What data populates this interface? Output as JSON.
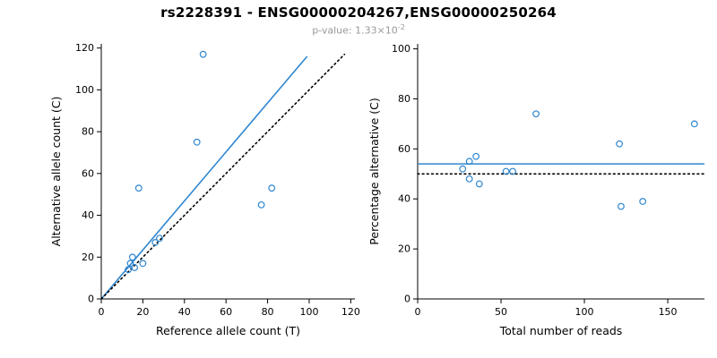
{
  "header": {
    "title": "rs2228391 - ENSG00000204267,ENSG00000250264",
    "pvalue_text": "p-value: 1.33×10",
    "pvalue_exponent": "-2"
  },
  "colors": {
    "accent_blue": "#2E86D0",
    "line_black": "#000000",
    "subtitle_gray": "#999999"
  },
  "chart_data": [
    {
      "type": "scatter",
      "title": "",
      "xlabel": "Reference allele count (T)",
      "ylabel": "Alternative allele count (C)",
      "xlim": [
        0,
        122
      ],
      "ylim": [
        0,
        122
      ],
      "xticks": [
        0,
        20,
        40,
        60,
        80,
        100,
        120
      ],
      "yticks": [
        0,
        20,
        40,
        60,
        80,
        100,
        120
      ],
      "grid": false,
      "legend": "none",
      "points": [
        [
          13,
          14
        ],
        [
          14,
          17
        ],
        [
          15,
          20
        ],
        [
          16,
          15
        ],
        [
          18,
          53
        ],
        [
          20,
          17
        ],
        [
          26,
          27
        ],
        [
          28,
          29
        ],
        [
          46,
          75
        ],
        [
          49,
          117
        ],
        [
          77,
          45
        ],
        [
          82,
          53
        ]
      ],
      "lines": [
        {
          "name": "regression-line",
          "style": "solid",
          "color": "#2E86D0",
          "x1": 0,
          "y1": 0,
          "x2": 99,
          "y2": 116
        },
        {
          "name": "identity-line",
          "style": "dotted",
          "color": "#000000",
          "x1": 0,
          "y1": 0,
          "x2": 117,
          "y2": 117
        }
      ]
    },
    {
      "type": "scatter",
      "title": "",
      "xlabel": "Total number of reads",
      "ylabel": "Percentage alternative (C)",
      "xlim": [
        0,
        172
      ],
      "ylim": [
        0,
        102
      ],
      "xticks": [
        0,
        50,
        100,
        150
      ],
      "yticks": [
        0,
        20,
        40,
        60,
        80,
        100
      ],
      "grid": false,
      "legend": "none",
      "points": [
        [
          27,
          52
        ],
        [
          31,
          55
        ],
        [
          31,
          48
        ],
        [
          35,
          57
        ],
        [
          37,
          46
        ],
        [
          53,
          51
        ],
        [
          57,
          51
        ],
        [
          71,
          74
        ],
        [
          121,
          62
        ],
        [
          122,
          37
        ],
        [
          135,
          39
        ],
        [
          166,
          70
        ]
      ],
      "lines": [
        {
          "name": "mean-percentage-line",
          "style": "solid",
          "color": "#2E86D0",
          "x1": 0,
          "y1": 54,
          "x2": 172,
          "y2": 54
        },
        {
          "name": "expected-percentage-line",
          "style": "dotted",
          "color": "#000000",
          "x1": 0,
          "y1": 50,
          "x2": 172,
          "y2": 50
        }
      ]
    }
  ]
}
